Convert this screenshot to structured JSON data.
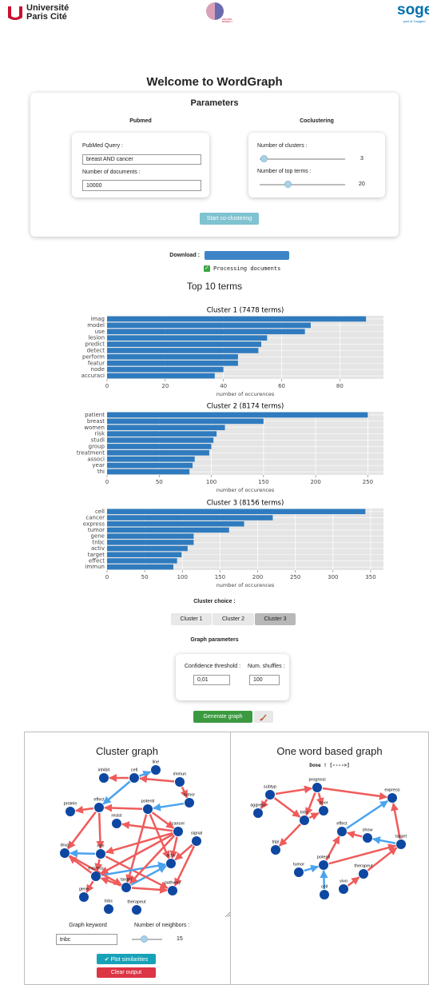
{
  "header": {
    "logo1_line1": "Université",
    "logo1_line2": "Paris Cité",
    "logo2": "CENTRE BORELLI",
    "logo3": "soge",
    "logo3_sub": "part of Capgem"
  },
  "title": "Welcome to WordGraph",
  "parameters": {
    "title": "Parameters",
    "pubmed": {
      "heading": "Pubmed",
      "query_label": "PubMed Query :",
      "query": "breast AND cancer",
      "docs_label": "Number of documents :",
      "docs": "10000"
    },
    "coclustering": {
      "heading": "Coclustering",
      "clusters_label": "Number of clusters :",
      "clusters": 3,
      "terms_label": "Number of top terms :",
      "terms": 20
    },
    "button": "Start co-clustering"
  },
  "download": {
    "label": "Download :",
    "status": "Processing documents"
  },
  "top_terms_title": "Top 10 terms",
  "chart_data": [
    {
      "type": "bar",
      "orientation": "horizontal",
      "title": "Cluster 1 (7478 terms)",
      "xlabel": "number of occurences",
      "categories": [
        "imag",
        "model",
        "use",
        "lesion",
        "predict",
        "detect",
        "perform",
        "featur",
        "node",
        "accuraci"
      ],
      "values": [
        89,
        70,
        68,
        55,
        53,
        52,
        45,
        45,
        40,
        37
      ],
      "color": "#2f7bbf",
      "xlim": [
        0,
        95
      ],
      "xticks": [
        0,
        20,
        40,
        60,
        80
      ],
      "grid": true
    },
    {
      "type": "bar",
      "orientation": "horizontal",
      "title": "Cluster 2 (8174 terms)",
      "xlabel": "number of occurences",
      "categories": [
        "patient",
        "breast",
        "women",
        "risk",
        "studi",
        "group",
        "treatment",
        "associ",
        "year",
        "thi"
      ],
      "values": [
        250,
        150,
        113,
        105,
        102,
        100,
        98,
        84,
        82,
        79
      ],
      "color": "#2f7bbf",
      "xlim": [
        0,
        265
      ],
      "xticks": [
        0,
        50,
        100,
        150,
        200,
        250
      ],
      "grid": true
    },
    {
      "type": "bar",
      "orientation": "horizontal",
      "title": "Cluster 3 (8156 terms)",
      "xlabel": "number of occurences",
      "categories": [
        "cell",
        "cancer",
        "express",
        "tumor",
        "gene",
        "tnbc",
        "activ",
        "target",
        "effect",
        "immun"
      ],
      "values": [
        343,
        220,
        182,
        162,
        115,
        115,
        107,
        99,
        93,
        88
      ],
      "color": "#2f7bbf",
      "xlim": [
        0,
        367
      ],
      "xticks": [
        0,
        50,
        100,
        150,
        200,
        250,
        300,
        350
      ],
      "grid": true
    }
  ],
  "cluster_choice": {
    "label": "Cluster choice :",
    "options": [
      "Cluster 1",
      "Cluster 2",
      "Cluster 3"
    ]
  },
  "graph_parameters": {
    "title": "Graph parameters",
    "threshold_label": "Confidence threshold :",
    "threshold": "0,01",
    "shuffles_label": "Num. shuffles :",
    "shuffles": "100",
    "button": "Generate graph"
  },
  "cluster_graph": {
    "title": "Cluster graph",
    "nodes": [
      "inhibit",
      "cell",
      "line",
      "immun",
      "tumor",
      "protein",
      "effect",
      "potenti",
      "resist",
      "cancer",
      "signal",
      "drug",
      "role",
      "activ",
      "express",
      "target",
      "pathway",
      "gene",
      "tnbc",
      "therapeut"
    ]
  },
  "one_word_graph": {
    "title": "One word based graph",
    "status": "Done ! [---->]",
    "nodes": [
      "prognosi",
      "subtyp",
      "aggress",
      "poor",
      "tnbc",
      "express",
      "effect",
      "show",
      "target",
      "tripl",
      "potenti",
      "tumor",
      "therapeut",
      "cell",
      "vivo"
    ]
  },
  "graph_controls": {
    "keyword_label": "Graph keyword",
    "keyword": "tnbc",
    "neighbors_label": "Number of neighbors :",
    "neighbors": 15,
    "plot_button": "✔ Plot similarities",
    "clear_button": "Clear output"
  }
}
